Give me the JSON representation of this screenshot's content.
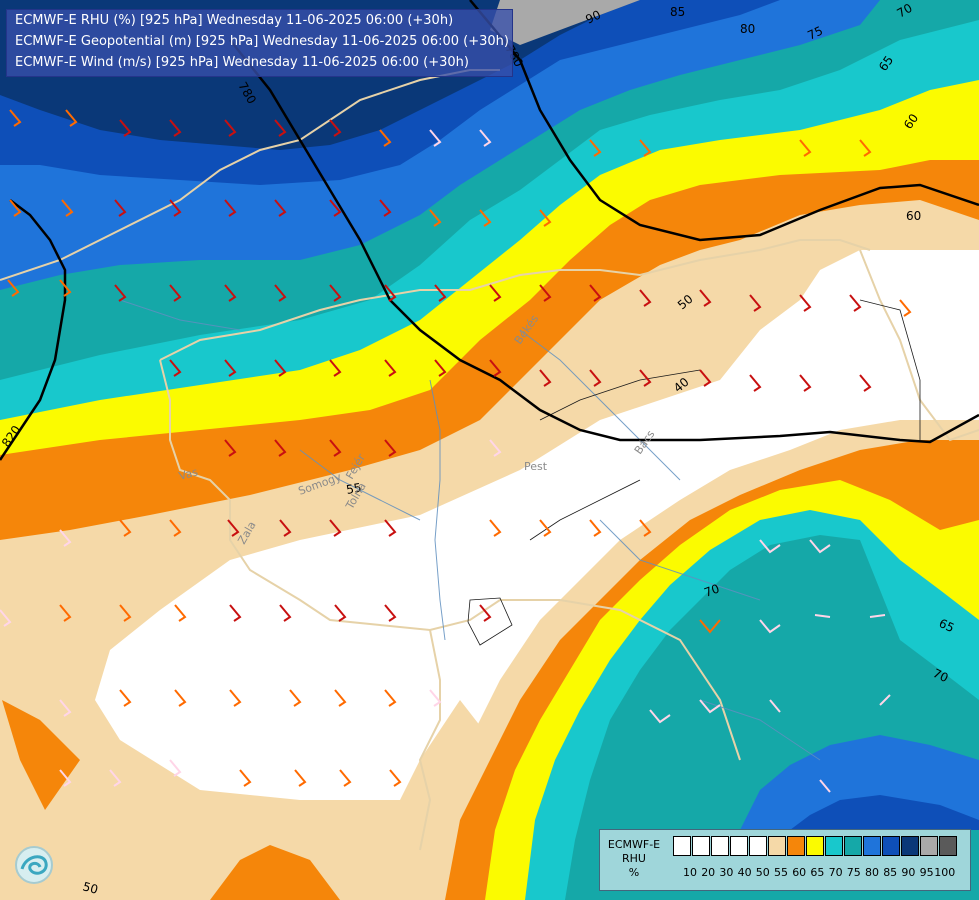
{
  "title_lines": [
    "ECMWF-E RHU (%) [925 hPa] Wednesday 11-06-2025 06:00 (+30h)",
    "ECMWF-E Geopotential (m) [925 hPa] Wednesday 11-06-2025 06:00 (+30h)",
    "ECMWF-E Wind (m/s) [925 hPa] Wednesday 11-06-2025 06:00 (+30h)"
  ],
  "legend": {
    "name_lines": [
      "ECMWF-E",
      "RHU",
      "%"
    ],
    "values": [
      "10",
      "20",
      "30",
      "40",
      "50",
      "55",
      "60",
      "65",
      "70",
      "75",
      "80",
      "85",
      "90",
      "95",
      "100"
    ],
    "colors": [
      "#ffffff",
      "#ffffff",
      "#ffffff",
      "#ffffff",
      "#ffffff",
      "#f5d9a8",
      "#f5860a",
      "#fbfb00",
      "#18c8cc",
      "#15a8a8",
      "#1f74da",
      "#0e4fb8",
      "#0a3878",
      "#a9a9a9",
      "#5a5a5a"
    ]
  },
  "geopotential_labels": [
    "820",
    "780",
    "780"
  ],
  "rhu_contour_labels": [
    "90",
    "85",
    "80",
    "75",
    "70",
    "65",
    "60",
    "60",
    "55",
    "50",
    "40",
    "70",
    "65",
    "70",
    "50"
  ],
  "place_labels": [
    "Pest",
    "Vas",
    "Zala",
    "Somogy",
    "Tolna",
    "Fejér",
    "Bács",
    "Békés"
  ],
  "colors": {
    "rhu_95": "#a9a9a9",
    "rhu_90": "#0a3878",
    "rhu_85": "#0e4fb8",
    "rhu_80": "#1f74da",
    "rhu_75": "#15a8a8",
    "rhu_70": "#18c8cc",
    "rhu_65": "#fbfb00",
    "rhu_60": "#f5860a",
    "rhu_55": "#f5d9a8",
    "rhu_low": "#ffffff",
    "border": "#e6d2a8",
    "river": "#5f8fbf",
    "geopotential_line": "#000000"
  }
}
